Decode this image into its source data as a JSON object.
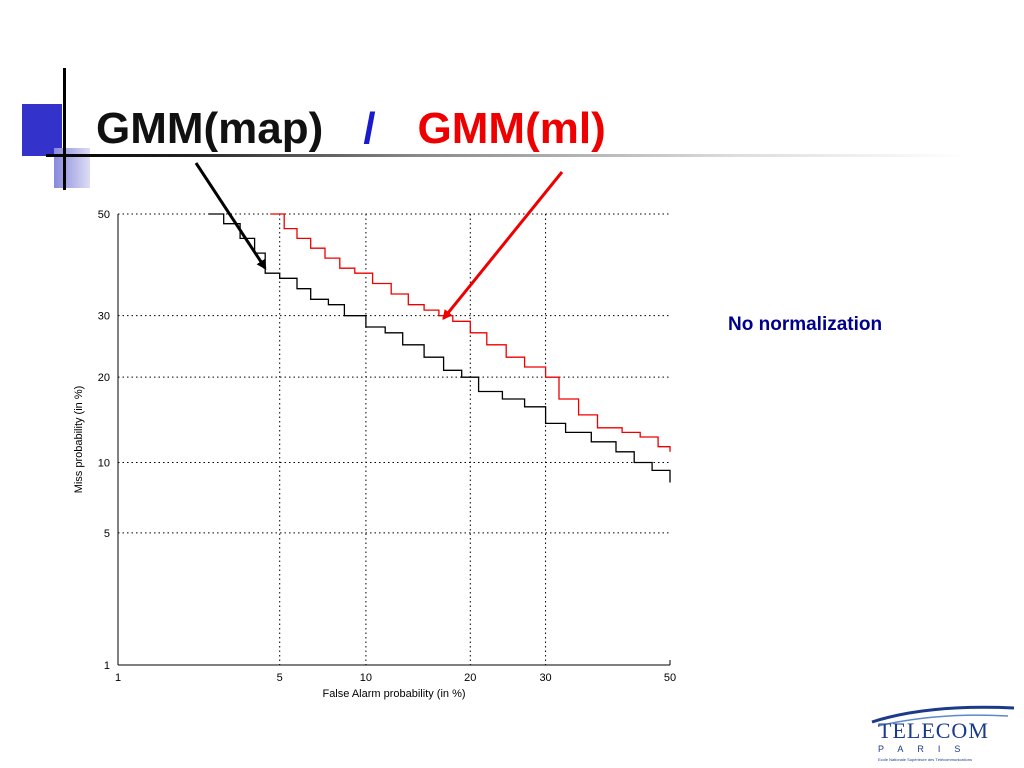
{
  "title": {
    "part1": "GMM(map)",
    "separator": "/",
    "part2": "GMM(ml)"
  },
  "note": "No normalization",
  "logo": {
    "word": "TELECOM",
    "sub": "PARIS",
    "tagline": "Ecole Nationale Supérieure des Télécommunications"
  },
  "colors": {
    "map_series": "#000000",
    "ml_series": "#ee0000",
    "title_separator": "#1a1acc",
    "note": "#00008b"
  },
  "chart_data": {
    "type": "line",
    "title": "",
    "xlabel": "False Alarm probability (in %)",
    "ylabel": "Miss probability (in %)",
    "x_scale": "probit",
    "y_scale": "probit",
    "xlim": [
      1,
      50
    ],
    "ylim": [
      1,
      50
    ],
    "x_ticks": [
      1,
      5,
      10,
      20,
      30,
      50
    ],
    "y_ticks": [
      1,
      5,
      10,
      20,
      30,
      50
    ],
    "grid": true,
    "series": [
      {
        "name": "GMM(map)",
        "color": "#000000",
        "points": [
          [
            2.6,
            50
          ],
          [
            3.0,
            48
          ],
          [
            3.5,
            45
          ],
          [
            4.0,
            42
          ],
          [
            4.4,
            38
          ],
          [
            5.0,
            37
          ],
          [
            5.8,
            35
          ],
          [
            6.5,
            33
          ],
          [
            7.5,
            32
          ],
          [
            8.5,
            30
          ],
          [
            10,
            28
          ],
          [
            11.5,
            27
          ],
          [
            13,
            25
          ],
          [
            15,
            23
          ],
          [
            17,
            21
          ],
          [
            19,
            20
          ],
          [
            21,
            18
          ],
          [
            24,
            17
          ],
          [
            27,
            16
          ],
          [
            30,
            14
          ],
          [
            33,
            13
          ],
          [
            37,
            12
          ],
          [
            41,
            11
          ],
          [
            44,
            10
          ],
          [
            47,
            9.3
          ],
          [
            50,
            8.3
          ]
        ]
      },
      {
        "name": "GMM(ml)",
        "color": "#ee0000",
        "points": [
          [
            4.6,
            50
          ],
          [
            5.2,
            47
          ],
          [
            5.8,
            45
          ],
          [
            6.5,
            43
          ],
          [
            7.3,
            41
          ],
          [
            8.2,
            39
          ],
          [
            9.2,
            38
          ],
          [
            10.5,
            36
          ],
          [
            12,
            34
          ],
          [
            13.5,
            32
          ],
          [
            15,
            31
          ],
          [
            16.5,
            30
          ],
          [
            18,
            29
          ],
          [
            20,
            27
          ],
          [
            22,
            25
          ],
          [
            24.5,
            23
          ],
          [
            27,
            21.5
          ],
          [
            30,
            20
          ],
          [
            32,
            17
          ],
          [
            35,
            15
          ],
          [
            38,
            13.5
          ],
          [
            42,
            13
          ],
          [
            45,
            12.5
          ],
          [
            48,
            11.5
          ],
          [
            50,
            11
          ]
        ]
      }
    ],
    "annotations": [
      {
        "label": "GMM(map)",
        "points_to": [
          4.4,
          39
        ]
      },
      {
        "label": "GMM(ml)",
        "points_to": [
          17,
          29.5
        ]
      }
    ]
  }
}
